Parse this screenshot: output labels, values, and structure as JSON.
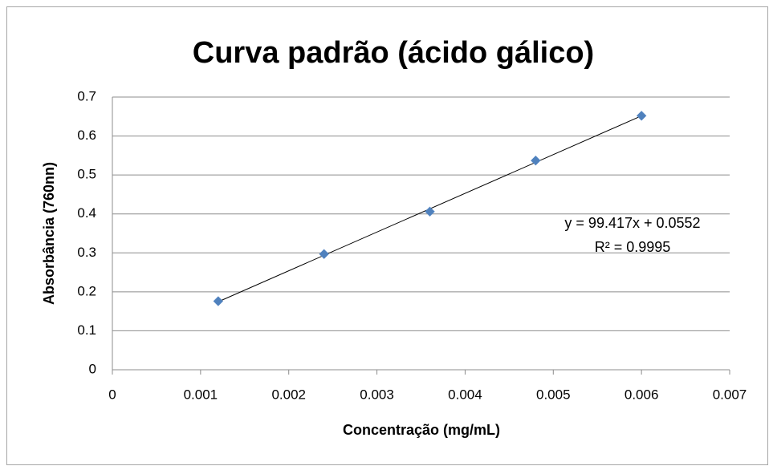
{
  "chart_data": {
    "type": "scatter",
    "title": "Curva padrão (ácido gálico)",
    "x_label": "Concentração (mg/mL)",
    "y_label": "Absorbância (760nn)",
    "x": [
      0.0012,
      0.0024,
      0.0036,
      0.0048,
      0.006
    ],
    "values": [
      0.176,
      0.297,
      0.406,
      0.537,
      0.652
    ],
    "color": "#4f81bd",
    "xlim": [
      0,
      0.007
    ],
    "xticks": [
      0,
      0.001,
      0.002,
      0.003,
      0.004,
      0.005,
      0.006,
      0.007
    ],
    "ylim": [
      0,
      0.7
    ],
    "yticks": [
      0,
      0.1,
      0.2,
      0.3,
      0.4,
      0.5,
      0.6,
      0.7
    ],
    "grid": true,
    "trendline": {
      "slope": 99.417,
      "intercept": 0.0552,
      "label": "y = 99.417x + 0.0552",
      "r2_label": "R² = 0.9995"
    }
  }
}
